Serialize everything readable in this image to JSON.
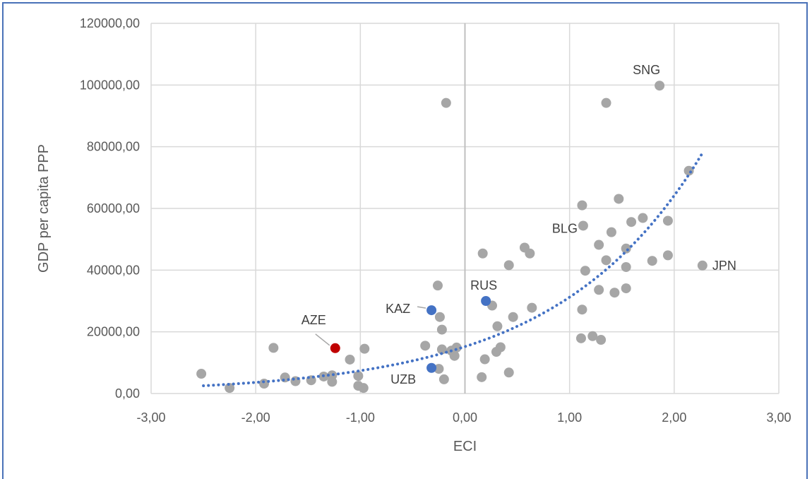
{
  "chart_data": {
    "type": "scatter",
    "xlabel": "ECI",
    "ylabel": "GDP per capita PPP",
    "xlim": [
      -3,
      3
    ],
    "ylim": [
      0,
      120000
    ],
    "x_ticks": [
      "-3,00",
      "-2,00",
      "-1,00",
      "0,00",
      "1,00",
      "2,00",
      "3,00"
    ],
    "y_ticks": [
      "0,00",
      "20000,00",
      "40000,00",
      "60000,00",
      "80000,00",
      "100000,00",
      "120000,00"
    ],
    "grid": true,
    "trendline": {
      "type": "exponential",
      "style": "dotted",
      "color": "#4472c4",
      "x_range": [
        -2.5,
        2.27
      ],
      "a": 15200,
      "b": 0.72
    },
    "colors": {
      "default": "#a6a6a6",
      "highlight_blue": "#4472c4",
      "highlight_red": "#c00000"
    },
    "points": [
      {
        "x": -2.52,
        "y": 6400
      },
      {
        "x": -2.25,
        "y": 1800
      },
      {
        "x": -1.92,
        "y": 3200
      },
      {
        "x": -1.83,
        "y": 14800
      },
      {
        "x": -1.72,
        "y": 5200
      },
      {
        "x": -1.62,
        "y": 4000
      },
      {
        "x": -1.47,
        "y": 4300
      },
      {
        "x": -1.35,
        "y": 5500
      },
      {
        "x": -1.27,
        "y": 5900
      },
      {
        "x": -1.27,
        "y": 3800
      },
      {
        "x": -1.1,
        "y": 11000
      },
      {
        "x": -1.02,
        "y": 5700
      },
      {
        "x": -1.02,
        "y": 2500
      },
      {
        "x": -0.97,
        "y": 1800
      },
      {
        "x": -0.96,
        "y": 14500
      },
      {
        "x": -0.38,
        "y": 15500
      },
      {
        "x": -0.26,
        "y": 35000
      },
      {
        "x": -0.24,
        "y": 24800
      },
      {
        "x": -0.22,
        "y": 20700
      },
      {
        "x": -0.22,
        "y": 14300
      },
      {
        "x": -0.2,
        "y": 4600
      },
      {
        "x": -0.18,
        "y": 94200
      },
      {
        "x": -0.13,
        "y": 13900
      },
      {
        "x": -0.1,
        "y": 12200
      },
      {
        "x": -0.08,
        "y": 14900
      },
      {
        "x": -0.25,
        "y": 8000
      },
      {
        "x": 0.17,
        "y": 45400
      },
      {
        "x": 0.16,
        "y": 5300
      },
      {
        "x": 0.19,
        "y": 11100
      },
      {
        "x": 0.26,
        "y": 28500
      },
      {
        "x": 0.3,
        "y": 13500
      },
      {
        "x": 0.31,
        "y": 21800
      },
      {
        "x": 0.34,
        "y": 15000
      },
      {
        "x": 0.42,
        "y": 41600
      },
      {
        "x": 0.42,
        "y": 6800
      },
      {
        "x": 0.46,
        "y": 24800
      },
      {
        "x": 0.57,
        "y": 47300
      },
      {
        "x": 0.62,
        "y": 45400
      },
      {
        "x": 0.64,
        "y": 27800
      },
      {
        "x": 1.12,
        "y": 61000
      },
      {
        "x": 1.13,
        "y": 54400
      },
      {
        "x": 1.15,
        "y": 39800
      },
      {
        "x": 1.12,
        "y": 27200
      },
      {
        "x": 1.11,
        "y": 17900
      },
      {
        "x": 1.22,
        "y": 18600
      },
      {
        "x": 1.28,
        "y": 48200
      },
      {
        "x": 1.28,
        "y": 33600
      },
      {
        "x": 1.3,
        "y": 17400
      },
      {
        "x": 1.35,
        "y": 43200
      },
      {
        "x": 1.35,
        "y": 94200
      },
      {
        "x": 1.4,
        "y": 52300
      },
      {
        "x": 1.43,
        "y": 32700
      },
      {
        "x": 1.47,
        "y": 63100
      },
      {
        "x": 1.54,
        "y": 47000
      },
      {
        "x": 1.54,
        "y": 41000
      },
      {
        "x": 1.54,
        "y": 34100
      },
      {
        "x": 1.59,
        "y": 55600
      },
      {
        "x": 1.7,
        "y": 56900
      },
      {
        "x": 1.79,
        "y": 43000
      },
      {
        "x": 1.86,
        "y": 99800
      },
      {
        "x": 1.94,
        "y": 56000
      },
      {
        "x": 1.94,
        "y": 44800
      },
      {
        "x": 2.14,
        "y": 72200
      },
      {
        "x": 2.27,
        "y": 41500
      }
    ],
    "highlighted": [
      {
        "label": "AZE",
        "x": -1.24,
        "y": 14700,
        "color": "#c00000"
      },
      {
        "label": "KAZ",
        "x": -0.32,
        "y": 27000,
        "color": "#4472c4"
      },
      {
        "label": "RUS",
        "x": 0.2,
        "y": 30000,
        "color": "#4472c4"
      },
      {
        "label": "UZB",
        "x": -0.32,
        "y": 8300,
        "color": "#4472c4"
      }
    ],
    "annotations": [
      {
        "label": "SNG",
        "x": 1.86,
        "y": 99800
      },
      {
        "label": "BLG",
        "x": 1.13,
        "y": 54400
      },
      {
        "label": "JPN",
        "x": 2.27,
        "y": 41500
      }
    ]
  }
}
